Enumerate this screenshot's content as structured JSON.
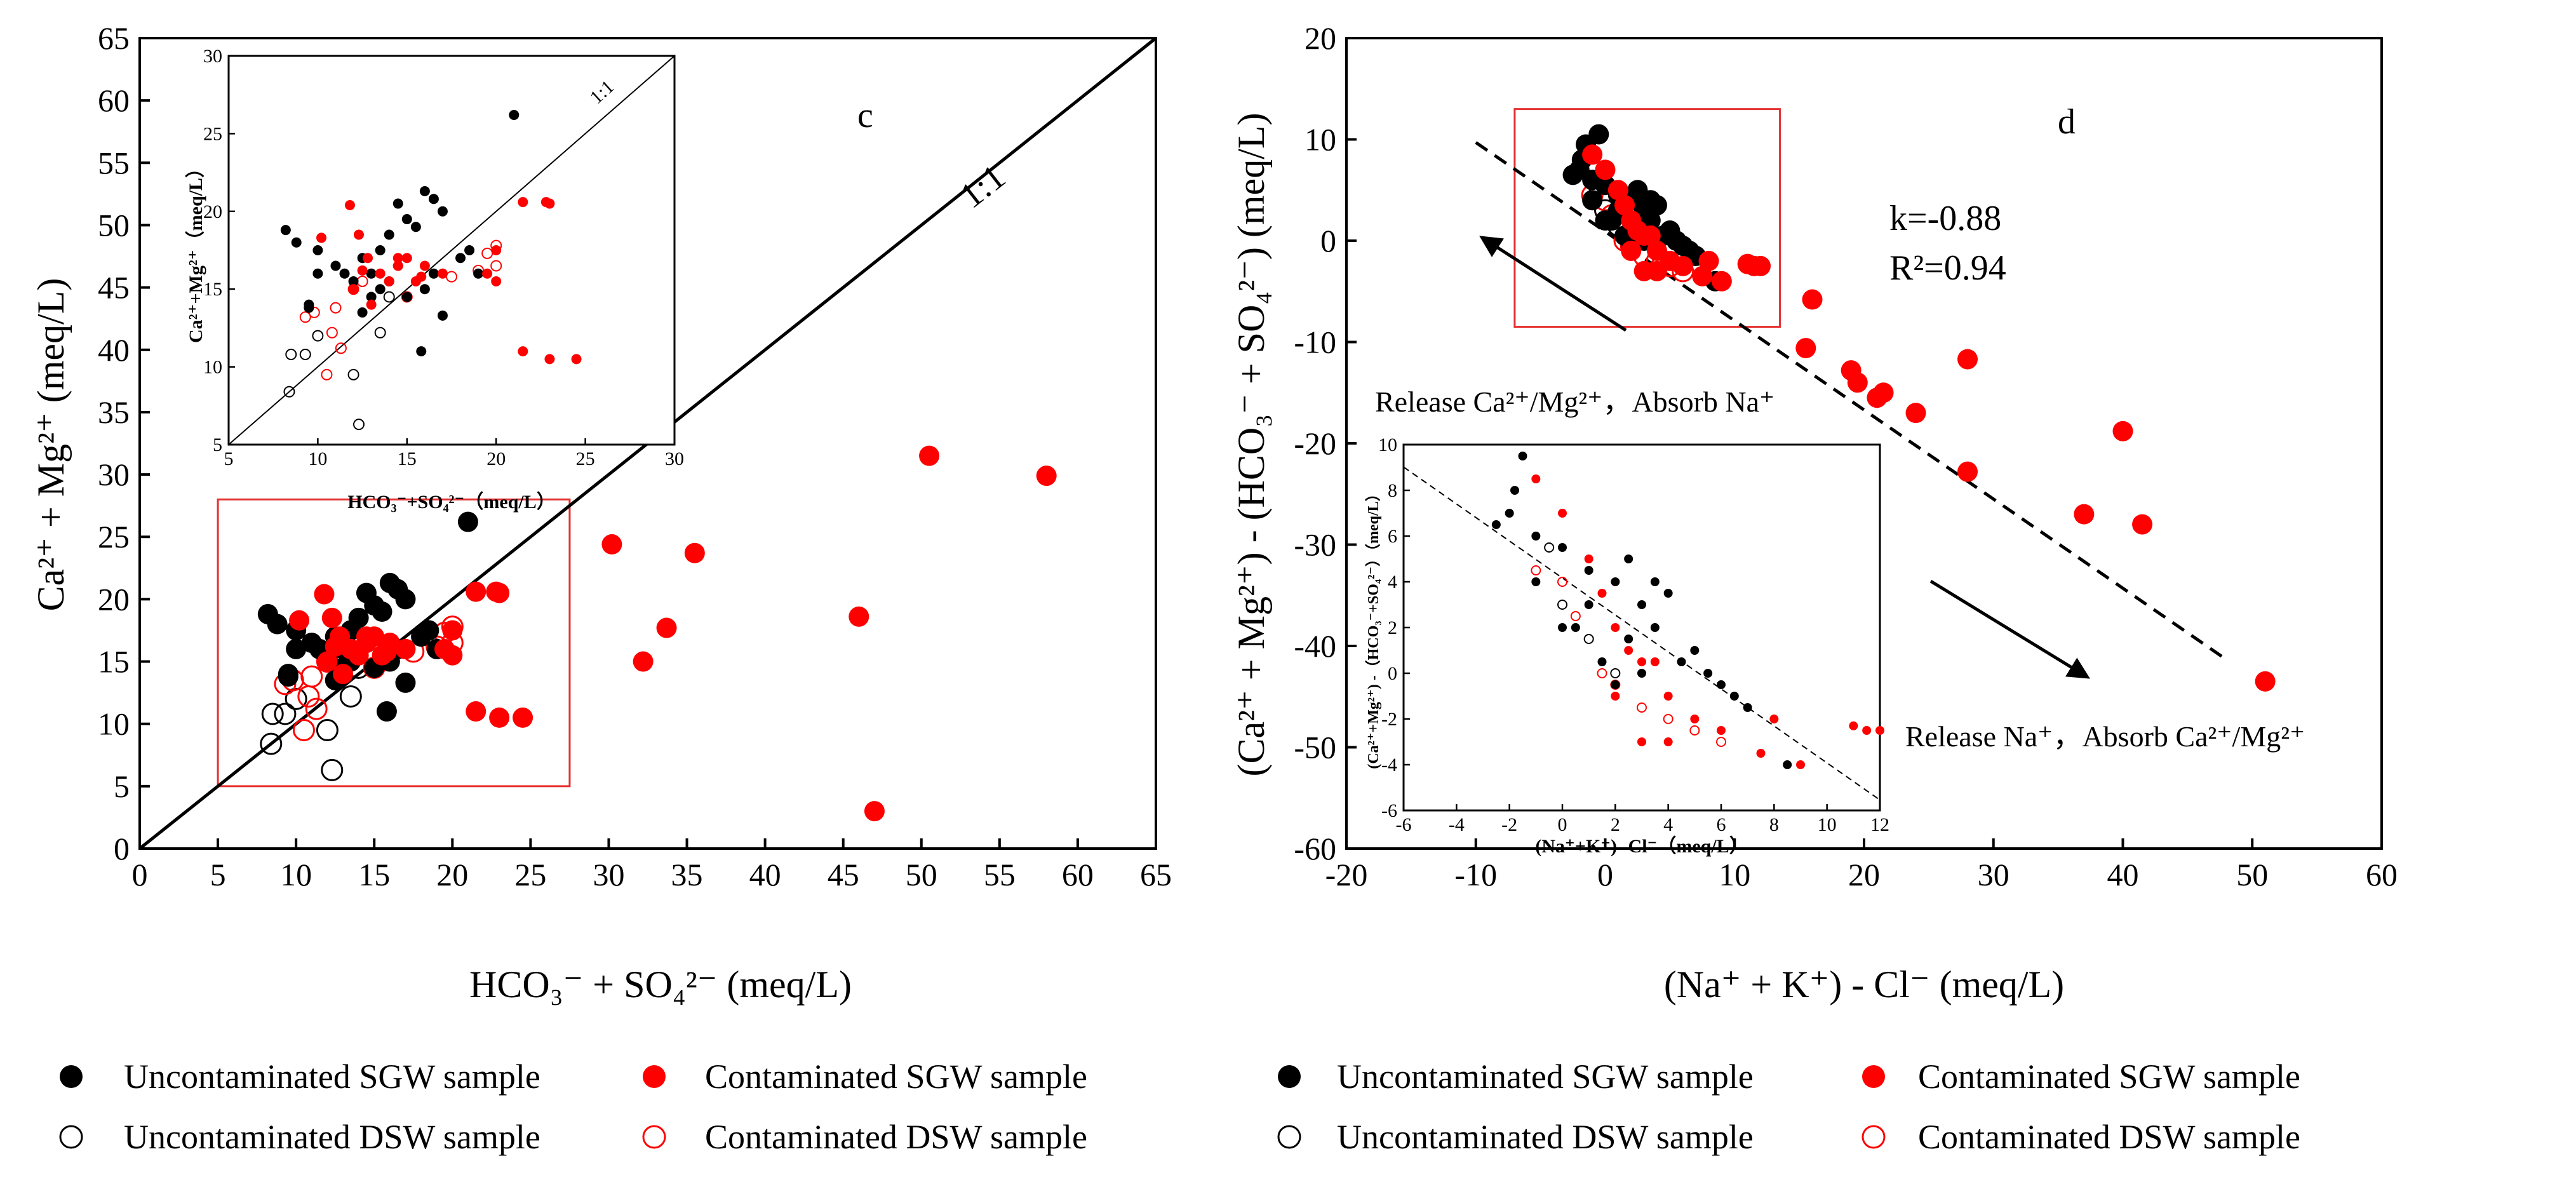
{
  "legend": [
    {
      "key": "unc_sgw",
      "label": "Uncontaminated SGW sample"
    },
    {
      "key": "con_sgw",
      "label": "Contaminated SGW sample"
    },
    {
      "key": "unc_dsw",
      "label": "Uncontaminated DSW sample"
    },
    {
      "key": "con_dsw",
      "label": "Contaminated DSW sample"
    }
  ],
  "colors": {
    "black": "#000000",
    "red": "#ff0000",
    "box": "#e53030"
  },
  "chart_data": [
    {
      "type": "scatter",
      "panel_label": "c",
      "xlabel_html": "HCO₃⁻ + SO₄²⁻ (meq/L)",
      "ylabel_html": "Ca²⁺ + Mg²⁺ (meq/L)",
      "xlim": [
        0,
        65
      ],
      "ylim": [
        0,
        65
      ],
      "xticks": [
        "0",
        "5",
        "10",
        "15",
        "20",
        "25",
        "30",
        "35",
        "40",
        "45",
        "50",
        "55",
        "60",
        "65"
      ],
      "yticks": [
        "0",
        "5",
        "10",
        "15",
        "20",
        "25",
        "30",
        "35",
        "40",
        "45",
        "50",
        "55",
        "60",
        "65"
      ],
      "ref_line_label": "1:1",
      "zoom_region": {
        "x": [
          5,
          27.5
        ],
        "y": [
          5,
          28
        ]
      },
      "series": {
        "unc_sgw": [
          [
            8.2,
            18.8
          ],
          [
            8.8,
            18
          ],
          [
            9.5,
            13.8
          ],
          [
            10,
            17.5
          ],
          [
            11,
            16.5
          ],
          [
            12,
            15.5
          ],
          [
            12.5,
            17
          ],
          [
            13,
            16
          ],
          [
            13.5,
            17.5
          ],
          [
            14,
            18.5
          ],
          [
            14.5,
            20.5
          ],
          [
            15,
            19.5
          ],
          [
            15.5,
            19
          ],
          [
            16,
            21.3
          ],
          [
            16.5,
            20.8
          ],
          [
            17,
            20
          ],
          [
            14.5,
            16.5
          ],
          [
            15,
            14.5
          ],
          [
            13,
            14.5
          ],
          [
            12.5,
            13.5
          ],
          [
            15.8,
            11
          ],
          [
            17,
            13.3
          ],
          [
            18,
            17
          ],
          [
            19,
            16
          ],
          [
            21,
            26.2
          ],
          [
            16,
            15
          ],
          [
            13.5,
            15
          ],
          [
            11.5,
            16
          ],
          [
            10,
            16
          ],
          [
            9.5,
            14
          ],
          [
            18.5,
            17.5
          ],
          [
            14,
            15.5
          ],
          [
            16.5,
            16
          ]
        ],
        "con_sgw": [
          [
            10.2,
            18.3
          ],
          [
            11.8,
            20.4
          ],
          [
            12.3,
            18.5
          ],
          [
            12.8,
            17
          ],
          [
            13.5,
            16
          ],
          [
            14,
            15.5
          ],
          [
            14.5,
            16.5
          ],
          [
            15,
            17
          ],
          [
            12,
            15
          ],
          [
            13,
            14
          ],
          [
            15.5,
            15.5
          ],
          [
            16,
            16.5
          ],
          [
            17,
            16
          ],
          [
            19.5,
            16
          ],
          [
            20,
            15.5
          ],
          [
            20,
            17.5
          ],
          [
            21.5,
            20.6
          ],
          [
            22.8,
            20.6
          ],
          [
            23,
            20.5
          ],
          [
            21.5,
            11
          ],
          [
            23,
            10.5
          ],
          [
            24.5,
            10.5
          ],
          [
            30.2,
            24.4
          ],
          [
            32.2,
            15
          ],
          [
            33.7,
            17.7
          ],
          [
            35.5,
            23.7
          ],
          [
            46,
            18.6
          ],
          [
            47,
            3
          ],
          [
            50.5,
            31.5
          ],
          [
            58,
            29.9
          ],
          [
            14.5,
            17
          ],
          [
            15.8,
            15.8
          ],
          [
            12.5,
            16.2
          ]
        ],
        "unc_dsw": [
          [
            8.4,
            8.4
          ],
          [
            8.5,
            10.8
          ],
          [
            9.3,
            10.8
          ],
          [
            10,
            12
          ],
          [
            12,
            9.5
          ],
          [
            12.3,
            6.3
          ],
          [
            13.5,
            12.2
          ],
          [
            14,
            14.5
          ]
        ],
        "con_dsw": [
          [
            9.3,
            13.2
          ],
          [
            9.8,
            13.5
          ],
          [
            10.5,
            9.5
          ],
          [
            10.8,
            12.2
          ],
          [
            11,
            13.8
          ],
          [
            11.3,
            11.2
          ],
          [
            12,
            15
          ],
          [
            12.5,
            15.5
          ],
          [
            19,
            16.2
          ],
          [
            20,
            17.8
          ],
          [
            20,
            16.5
          ],
          [
            19.5,
            17.3
          ],
          [
            17.5,
            15.8
          ],
          [
            15,
            14.5
          ]
        ]
      },
      "inset": {
        "xlabel_html": "HCO₃⁻+SO₄²⁻（meq/L）",
        "ylabel_html": "Ca²⁺+Mg²⁺（meq/L）",
        "xlim": [
          5,
          30
        ],
        "ylim": [
          5,
          30
        ],
        "xticks": [
          "5",
          "10",
          "15",
          "20",
          "25",
          "30"
        ],
        "yticks": [
          "5",
          "10",
          "15",
          "20",
          "25",
          "30"
        ],
        "ref_line_label": "1:1"
      }
    },
    {
      "type": "scatter",
      "panel_label": "d",
      "xlabel_html": "(Na⁺ + K⁺) - Cl⁻ (meq/L)",
      "ylabel_html": "(Ca²⁺ + Mg²⁺) - (HCO₃⁻ + SO₄²⁻) (meq/L)",
      "xlim": [
        -20,
        60
      ],
      "ylim": [
        -60,
        20
      ],
      "xticks": [
        "-20",
        "-10",
        "0",
        "10",
        "20",
        "30",
        "40",
        "50",
        "60"
      ],
      "yticks": [
        "-60",
        "-50",
        "-40",
        "-30",
        "-20",
        "-10",
        "0",
        "10",
        "20"
      ],
      "fit": {
        "slope": -0.88,
        "intercept": 0.9,
        "x_range": [
          -10,
          48
        ]
      },
      "k_label": "k=-0.88",
      "r2_label": "R²=0.94",
      "release_ca_text": "Release Ca²⁺/Mg²⁺，Absorb Na⁺",
      "release_na_text": "Release Na⁺，Absorb Ca²⁺/Mg²⁺",
      "zoom_region": {
        "x": [
          -7,
          13.5
        ],
        "y": [
          -8.5,
          13
        ]
      },
      "series": {
        "unc_sgw": [
          [
            -1.5,
            9.5
          ],
          [
            -0.5,
            10.5
          ],
          [
            -2,
            7
          ],
          [
            -1,
            6
          ],
          [
            0,
            5.5
          ],
          [
            1,
            4.5
          ],
          [
            2,
            4
          ],
          [
            2.5,
            5
          ],
          [
            3,
            3
          ],
          [
            3.5,
            2
          ],
          [
            4,
            3.5
          ],
          [
            5,
            1
          ],
          [
            6,
            -0.5
          ],
          [
            7,
            -1.5
          ],
          [
            8.5,
            -4
          ],
          [
            -1,
            4
          ],
          [
            0.5,
            2
          ],
          [
            1.5,
            0.5
          ],
          [
            2,
            -0.5
          ],
          [
            3,
            0
          ],
          [
            1,
            3
          ],
          [
            0,
            2
          ],
          [
            4.5,
            0.5
          ],
          [
            2.5,
            1.5
          ],
          [
            -2.5,
            6.5
          ],
          [
            -1.8,
            8
          ],
          [
            5.5,
            0
          ],
          [
            6.5,
            -1
          ],
          [
            3.5,
            4
          ]
        ],
        "con_sgw": [
          [
            -1,
            8.5
          ],
          [
            0,
            7
          ],
          [
            1,
            5
          ],
          [
            1.5,
            3.5
          ],
          [
            2,
            2
          ],
          [
            2.5,
            1
          ],
          [
            3,
            0.5
          ],
          [
            3.5,
            0.5
          ],
          [
            4,
            -1
          ],
          [
            5,
            -2
          ],
          [
            6,
            -2.5
          ],
          [
            7.5,
            -3.5
          ],
          [
            8,
            -2
          ],
          [
            9,
            -4
          ],
          [
            11,
            -2.3
          ],
          [
            11.5,
            -2.5
          ],
          [
            12,
            -2.5
          ],
          [
            16,
            -5.8
          ],
          [
            15.5,
            -10.6
          ],
          [
            19,
            -12.8
          ],
          [
            19.5,
            -14
          ],
          [
            21,
            -15.5
          ],
          [
            21.5,
            -15
          ],
          [
            24,
            -17
          ],
          [
            28,
            -11.7
          ],
          [
            28,
            -22.8
          ],
          [
            37,
            -27
          ],
          [
            40,
            -18.8
          ],
          [
            41.5,
            -28
          ],
          [
            51,
            -43.5
          ],
          [
            2,
            -1
          ],
          [
            3,
            -3
          ],
          [
            4,
            -3
          ]
        ],
        "unc_dsw": [
          [
            -0.5,
            5.5
          ],
          [
            0,
            3
          ],
          [
            1,
            1.5
          ],
          [
            2,
            0
          ]
        ],
        "con_dsw": [
          [
            -1,
            4.5
          ],
          [
            0,
            4
          ],
          [
            0.5,
            2.5
          ],
          [
            1.5,
            0
          ],
          [
            2,
            -0.5
          ],
          [
            3,
            -1.5
          ],
          [
            4,
            -2
          ],
          [
            5,
            -2.5
          ],
          [
            6,
            -3
          ]
        ]
      },
      "inset": {
        "xlabel_html": "(Na⁺+K⁺) -Cl⁻（meq/L）",
        "ylabel_html": "(Ca²⁺+Mg²⁺) -（HCO₃⁻+SO₄²⁻）（meq/L）",
        "xlim": [
          -6,
          12
        ],
        "ylim": [
          -6,
          10
        ],
        "xticks": [
          "-6",
          "-4",
          "-2",
          "0",
          "2",
          "4",
          "6",
          "8",
          "10",
          "12"
        ],
        "yticks": [
          "-6",
          "-4",
          "-2",
          "0",
          "2",
          "4",
          "6",
          "8",
          "10"
        ]
      }
    }
  ]
}
